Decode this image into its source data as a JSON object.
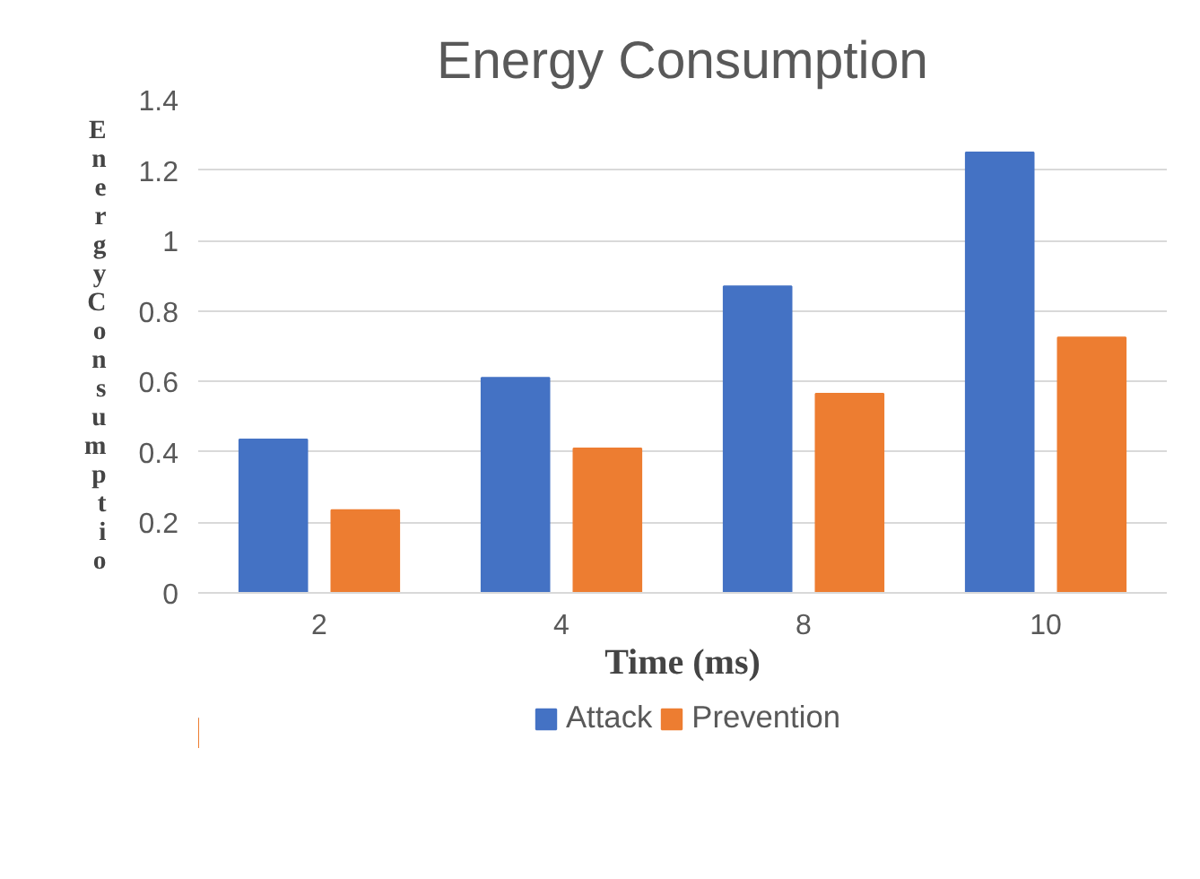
{
  "chart_data": {
    "type": "bar",
    "title": "Energy Consumption",
    "xlabel": "Time (ms)",
    "ylabel": "EnergyConsumptio",
    "categories": [
      "2",
      "4",
      "8",
      "10"
    ],
    "series": [
      {
        "name": "Attack",
        "color": "#4472c4",
        "values": [
          0.435,
          0.61,
          0.87,
          1.25
        ]
      },
      {
        "name": "Prevention",
        "color": "#ed7d31",
        "values": [
          0.235,
          0.41,
          0.565,
          0.725
        ]
      }
    ],
    "ylim": [
      0,
      1.4
    ],
    "yticks": [
      0,
      0.2,
      0.4,
      0.6,
      0.8,
      1,
      1.2,
      1.4
    ],
    "grid": "y",
    "legend": "bottom"
  }
}
